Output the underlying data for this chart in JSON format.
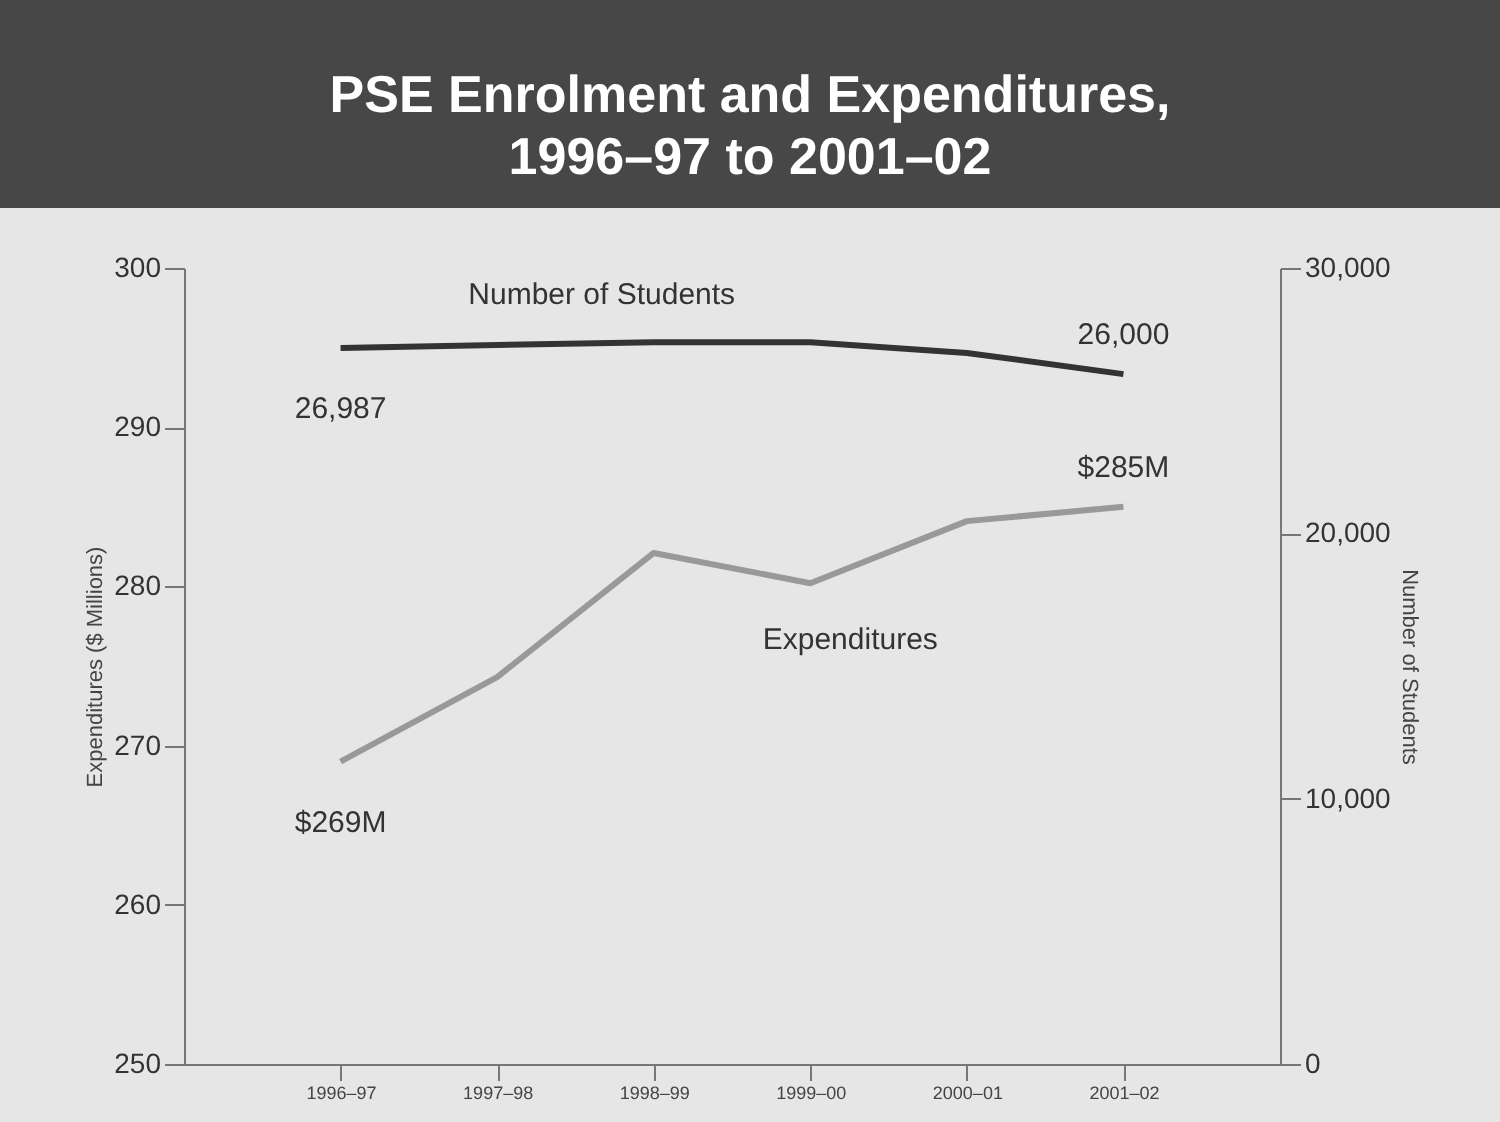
{
  "chart_data": {
    "type": "line",
    "title": "PSE Enrolment and Expenditures, 1996–97 to 2001–02",
    "categories": [
      "1996–97",
      "1997–98",
      "1998–99",
      "1999–00",
      "2000–01",
      "2001–02"
    ],
    "series": [
      {
        "name": "Number of Students",
        "color": "#333333",
        "axis": "y2",
        "values": [
          26987,
          27100,
          27200,
          27200,
          26800,
          26000
        ],
        "value_labels": [
          "26,987",
          null,
          null,
          null,
          null,
          "26,000"
        ]
      },
      {
        "name": "Expenditures",
        "color": "#999999",
        "values": [
          269,
          274.3,
          282.1,
          280.2,
          284.1,
          285
        ],
        "value_labels": [
          "$269M",
          null,
          null,
          null,
          null,
          "$285M"
        ]
      }
    ],
    "ylabel": "Expenditures ($ Millions)",
    "y2label": "Number of Students",
    "ylim": [
      250,
      300
    ],
    "yticks": [
      250,
      260,
      270,
      280,
      290,
      300
    ],
    "y2lim": [
      0,
      30000
    ],
    "y2ticks": [
      0,
      {
        "value": 10000,
        "label": "10,000"
      },
      {
        "value": 20000,
        "label": "20,000"
      },
      {
        "value": 30000,
        "label": "30,000"
      }
    ],
    "grid": false,
    "legend": false,
    "line_style": "solid",
    "marker": "none"
  }
}
